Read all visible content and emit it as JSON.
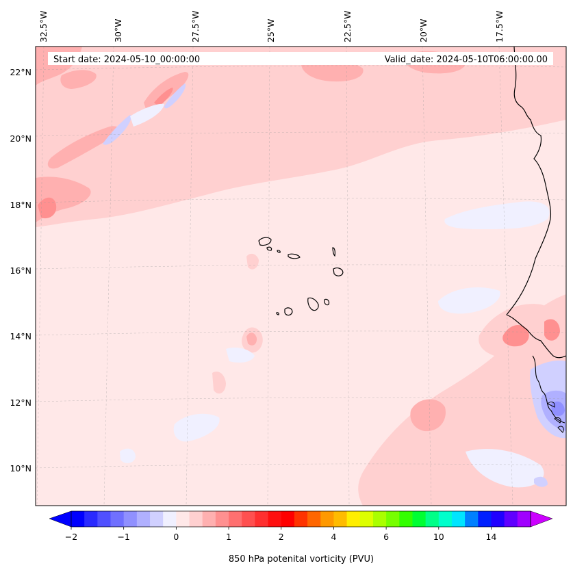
{
  "map": {
    "start_label": "Start date: 2024-05-10_00:00:00",
    "valid_label": "Valid_date: 2024-05-10T06:00:00.00",
    "lon_labels": [
      "32.5°W",
      "30°W",
      "27.5°W",
      "25°W",
      "22.5°W",
      "20°W",
      "17.5°W"
    ],
    "lat_labels": [
      "22°N",
      "20°N",
      "18°N",
      "16°N",
      "14°N",
      "12°N",
      "10°N"
    ],
    "gridlines": true,
    "coastline_color": "#000000"
  },
  "colorbar": {
    "label": "850 hPa potenital vorticity (PVU)",
    "tick_labels": [
      "−2",
      "−1",
      "0",
      "1",
      "2",
      "4",
      "6",
      "10",
      "14"
    ],
    "colors": [
      "#0000ff",
      "#2a2aff",
      "#5050ff",
      "#7070ff",
      "#9090ff",
      "#b0b0ff",
      "#d0d0ff",
      "#f0f0ff",
      "#ffe8e8",
      "#ffd0d0",
      "#ffb0b0",
      "#ff9090",
      "#ff7070",
      "#ff5050",
      "#ff3030",
      "#ff1010",
      "#ff0000",
      "#ff3300",
      "#ff6600",
      "#ff9900",
      "#ffbb00",
      "#ffee00",
      "#ddff00",
      "#aaff00",
      "#77ff00",
      "#33ff00",
      "#00ff33",
      "#00ff88",
      "#00ffcc",
      "#00e5ff",
      "#0080ff",
      "#0020ff",
      "#2000ff",
      "#6000ff",
      "#a000ff"
    ],
    "extend_low_color": "#0000ff",
    "extend_high_color": "#cc00ff"
  }
}
